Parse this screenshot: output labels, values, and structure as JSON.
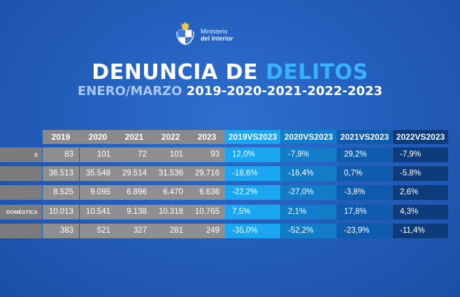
{
  "brand": {
    "line1": "Ministerio",
    "line2": "del Interior"
  },
  "title": {
    "part1": "DENUNCIA DE ",
    "part2": "DELITOS"
  },
  "subtitle": {
    "prefix": "ENERO/MARZO ",
    "years": "2019-2020-2021-2022-2023"
  },
  "colors": {
    "vs1": "#1aa6f0",
    "vs2": "#137cc8",
    "vs3": "#0f5cae",
    "vs4": "#0c3c7c",
    "gray": "#8f8f91"
  },
  "table": {
    "headers": [
      "2019",
      "2020",
      "2021",
      "2022",
      "2023",
      "2019VS2023",
      "2020VS2023",
      "2021VS2023",
      "2022VS2023"
    ],
    "rows": [
      {
        "label": "S",
        "values": [
          "83",
          "101",
          "72",
          "101",
          "93"
        ],
        "pcts": [
          "12,0%",
          "-7,9%",
          "29,2%",
          "-7,9%"
        ]
      },
      {
        "label": "",
        "values": [
          "36.513",
          "35.548",
          "29.514",
          "31.536",
          "29.716"
        ],
        "pcts": [
          "-18,6%",
          "-16,4%",
          "0,7%",
          "-5,8%"
        ]
      },
      {
        "label": "",
        "values": [
          "8.525",
          "9.095",
          "6.896",
          "6.470",
          "6.636"
        ],
        "pcts": [
          "-22,2%",
          "-27,0%",
          "-3,8%",
          "2,6%"
        ]
      },
      {
        "label": "DOMÉSTICA",
        "values": [
          "10.013",
          "10.541",
          "9.138",
          "10.318",
          "10.765"
        ],
        "pcts": [
          "7,5%",
          "2,1%",
          "17,8%",
          "4,3%"
        ]
      },
      {
        "label": "",
        "values": [
          "383",
          "521",
          "327",
          "281",
          "249"
        ],
        "pcts": [
          "-35,0%",
          "-52,2%",
          "-23,9%",
          "-11,4%"
        ]
      }
    ]
  }
}
